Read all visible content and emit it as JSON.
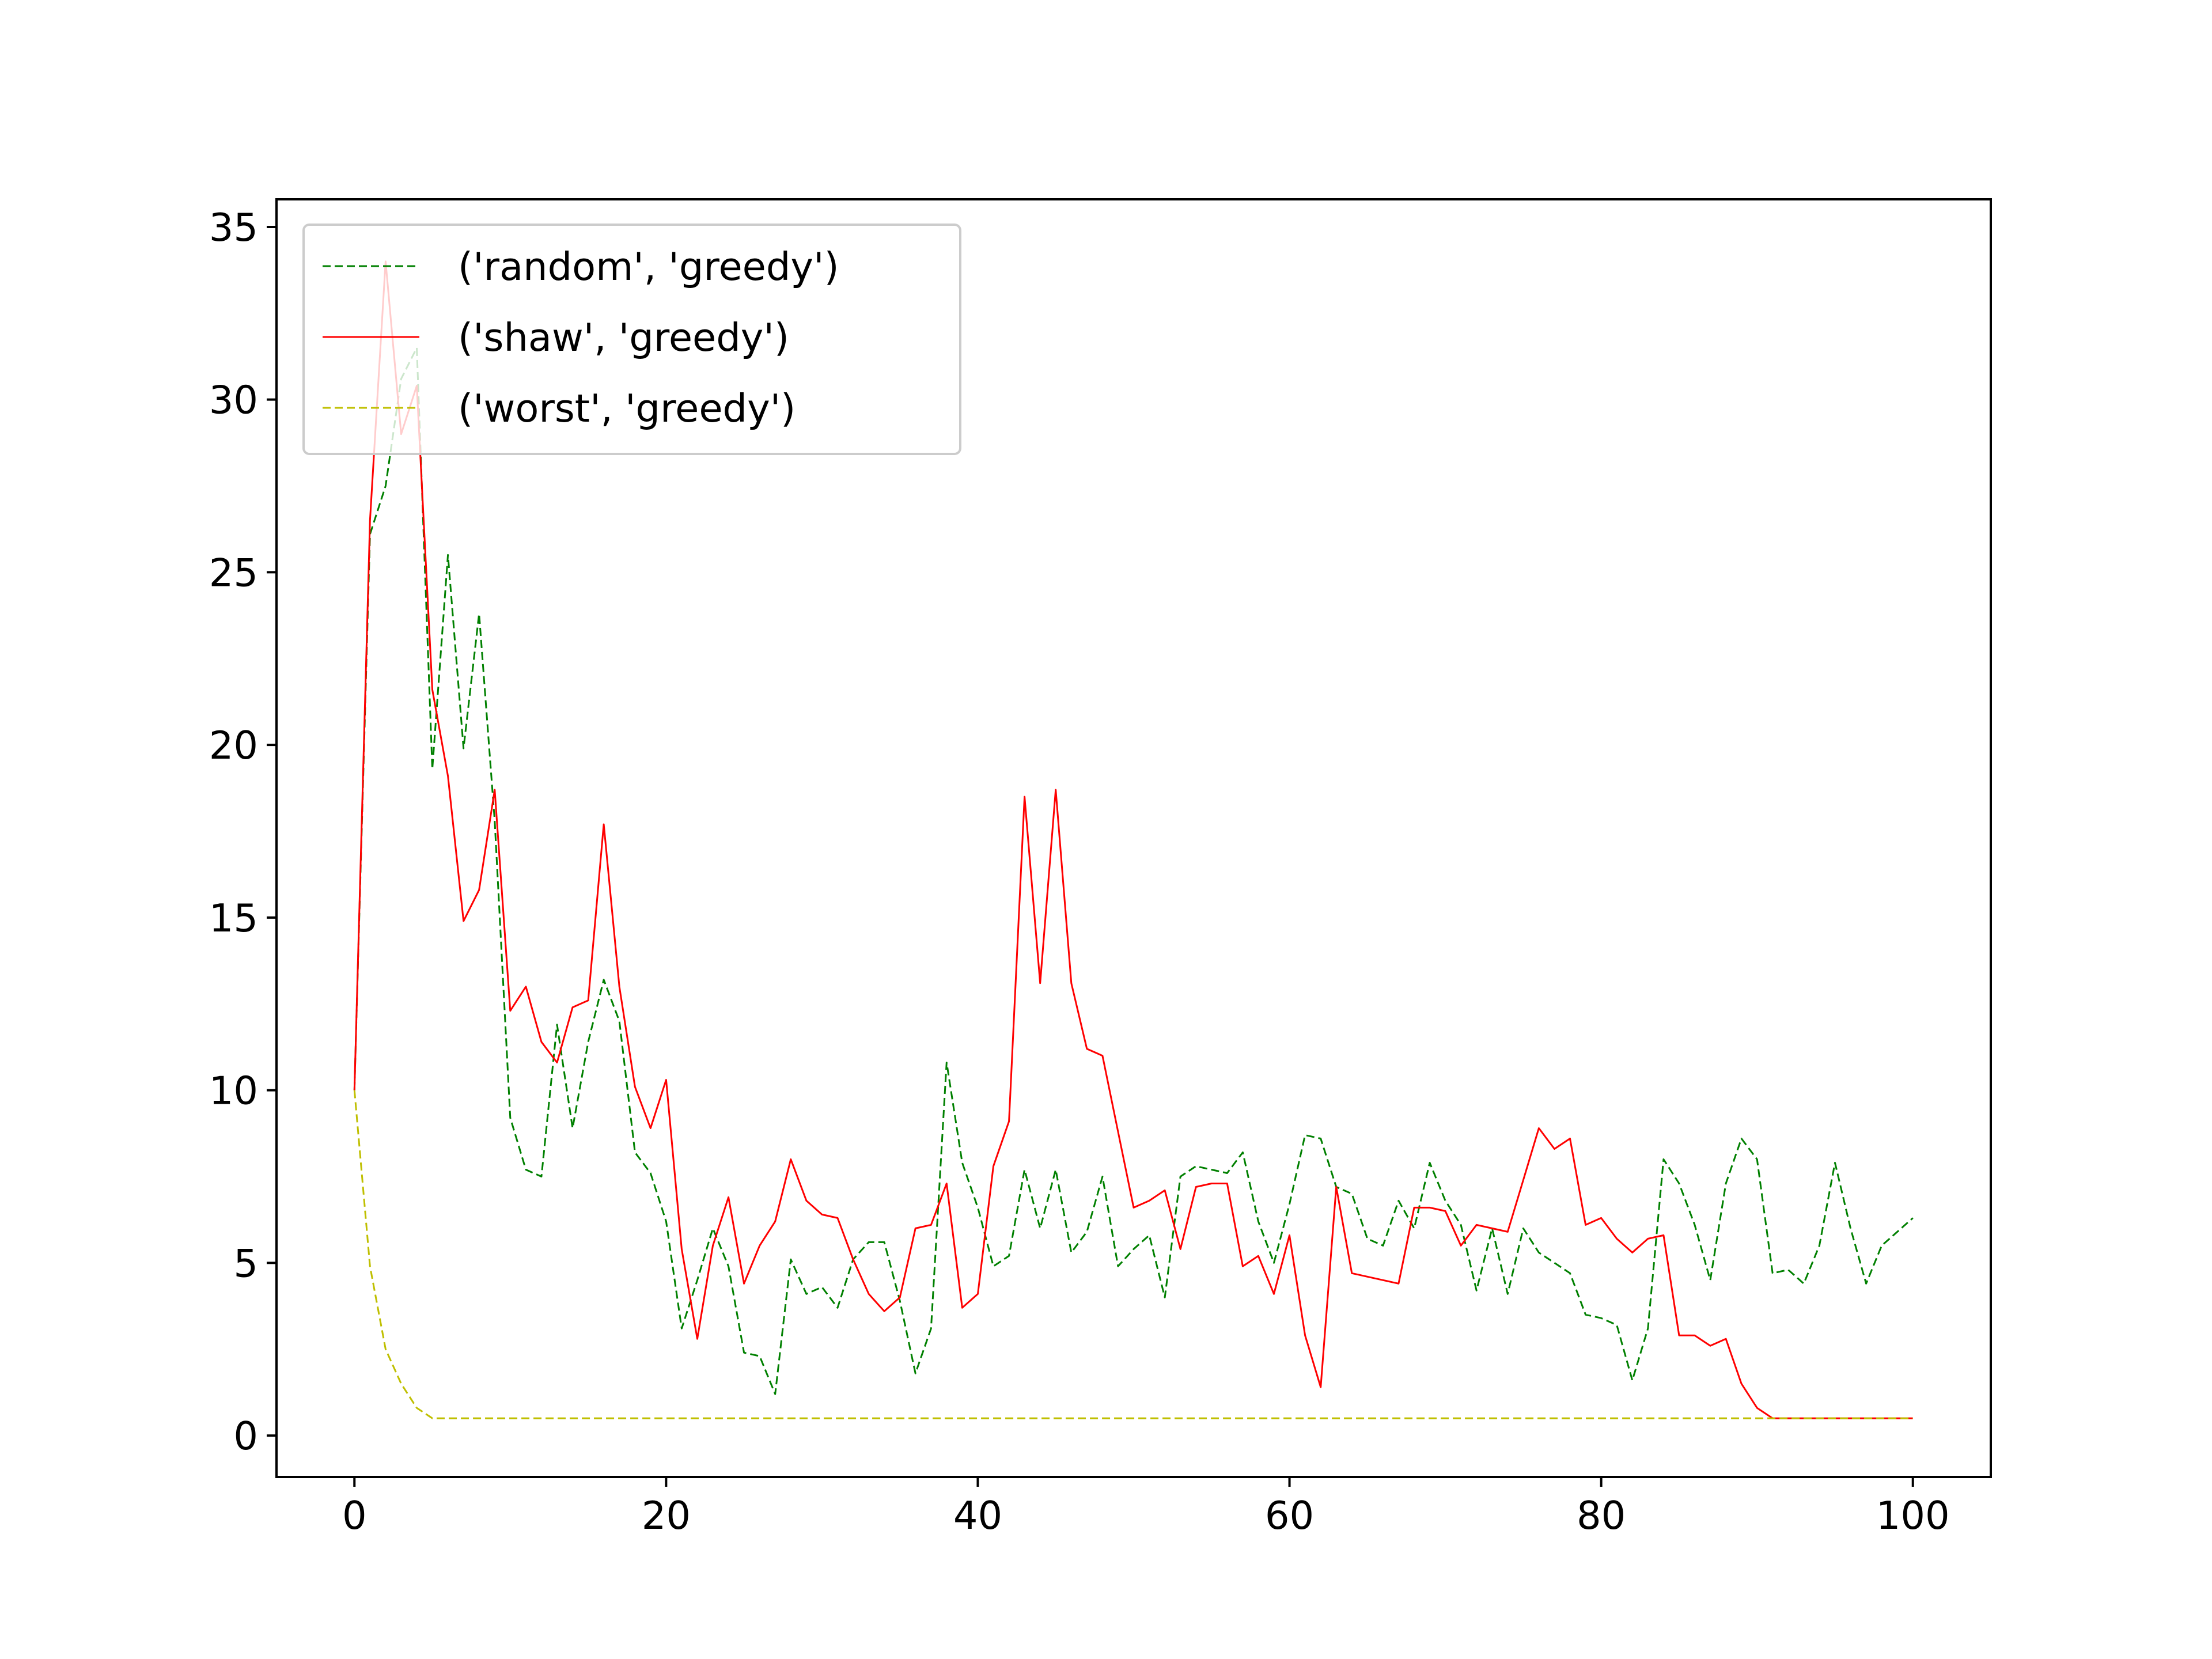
{
  "chart_data": {
    "type": "line",
    "title": "",
    "xlabel": "",
    "ylabel": "",
    "xlim": [
      -5,
      105
    ],
    "ylim": [
      -1.2,
      35.8
    ],
    "x_ticks": [
      0,
      20,
      40,
      60,
      80,
      100
    ],
    "y_ticks": [
      0,
      5,
      10,
      15,
      20,
      25,
      30,
      35
    ],
    "x_tick_labels": [
      "0",
      "20",
      "40",
      "60",
      "80",
      "100"
    ],
    "y_tick_labels": [
      "0",
      "5",
      "10",
      "15",
      "20",
      "25",
      "30",
      "35"
    ],
    "grid": false,
    "legend_position": "upper-left",
    "series": [
      {
        "name": "('random', 'greedy')",
        "color": "#008000",
        "line_style": "dashed",
        "values": [
          10.0,
          26.1,
          27.5,
          30.6,
          31.5,
          19.3,
          25.5,
          19.9,
          23.8,
          17.8,
          9.2,
          7.7,
          7.5,
          11.9,
          8.9,
          11.4,
          13.2,
          12.0,
          8.2,
          7.6,
          6.2,
          3.1,
          4.5,
          6.0,
          4.9,
          2.4,
          2.3,
          1.2,
          5.1,
          4.1,
          4.3,
          3.7,
          5.1,
          5.6,
          5.6,
          3.9,
          1.8,
          3.1,
          10.8,
          7.9,
          6.6,
          4.9,
          5.2,
          7.7,
          6.0,
          7.7,
          5.3,
          5.9,
          7.5,
          4.9,
          5.4,
          5.8,
          4.0,
          7.5,
          7.8,
          7.7,
          7.6,
          8.2,
          6.2,
          5.0,
          6.7,
          8.7,
          8.6,
          7.2,
          7.0,
          5.7,
          5.5,
          6.8,
          6.0,
          7.9,
          6.8,
          6.1,
          4.2,
          6.0,
          4.1,
          6.0,
          5.3,
          5.0,
          4.7,
          3.5,
          3.4,
          3.2,
          1.6,
          3.1,
          8.0,
          7.3,
          6.1,
          4.5,
          7.3,
          8.6,
          8.0,
          4.7,
          4.8,
          4.4,
          5.5,
          7.9,
          6.0,
          4.4,
          5.5,
          5.9,
          6.3
        ]
      },
      {
        "name": "('shaw', 'greedy')",
        "color": "#ff0000",
        "line_style": "solid",
        "values": [
          10.0,
          26.5,
          34.0,
          29.0,
          30.4,
          21.6,
          19.1,
          14.9,
          15.8,
          18.7,
          12.3,
          13.0,
          11.4,
          10.8,
          12.4,
          12.6,
          17.7,
          13.0,
          10.1,
          8.9,
          10.3,
          5.4,
          2.8,
          5.5,
          6.9,
          4.4,
          5.5,
          6.2,
          8.0,
          6.8,
          6.4,
          6.3,
          5.1,
          4.1,
          3.6,
          4.0,
          6.0,
          6.1,
          7.3,
          3.7,
          4.1,
          7.8,
          9.1,
          18.5,
          13.1,
          18.7,
          13.1,
          11.2,
          11.0,
          8.8,
          6.6,
          6.8,
          7.1,
          5.4,
          7.2,
          7.3,
          7.3,
          4.9,
          5.2,
          4.1,
          5.8,
          2.9,
          1.4,
          7.2,
          4.7,
          4.6,
          4.5,
          4.4,
          6.6,
          6.6,
          6.5,
          5.5,
          6.1,
          6.0,
          5.9,
          7.4,
          8.9,
          8.3,
          8.6,
          6.1,
          6.3,
          5.7,
          5.3,
          5.7,
          5.8,
          2.9,
          2.9,
          2.6,
          2.8,
          1.5,
          0.8,
          0.5,
          0.5,
          0.5,
          0.5,
          0.5,
          0.5,
          0.5,
          0.5,
          0.5,
          0.5
        ]
      },
      {
        "name": "('worst', 'greedy')",
        "color": "#bfbf00",
        "line_style": "dashed",
        "values": [
          10.0,
          4.9,
          2.5,
          1.5,
          0.8,
          0.5,
          0.5,
          0.5,
          0.5,
          0.5,
          0.5,
          0.5,
          0.5,
          0.5,
          0.5,
          0.5,
          0.5,
          0.5,
          0.5,
          0.5,
          0.5,
          0.5,
          0.5,
          0.5,
          0.5,
          0.5,
          0.5,
          0.5,
          0.5,
          0.5,
          0.5,
          0.5,
          0.5,
          0.5,
          0.5,
          0.5,
          0.5,
          0.5,
          0.5,
          0.5,
          0.5,
          0.5,
          0.5,
          0.5,
          0.5,
          0.5,
          0.5,
          0.5,
          0.5,
          0.5,
          0.5,
          0.5,
          0.5,
          0.5,
          0.5,
          0.5,
          0.5,
          0.5,
          0.5,
          0.5,
          0.5,
          0.5,
          0.5,
          0.5,
          0.5,
          0.5,
          0.5,
          0.5,
          0.5,
          0.5,
          0.5,
          0.5,
          0.5,
          0.5,
          0.5,
          0.5,
          0.5,
          0.5,
          0.5,
          0.5,
          0.5,
          0.5,
          0.5,
          0.5,
          0.5,
          0.5,
          0.5,
          0.5,
          0.5,
          0.5,
          0.5,
          0.5,
          0.5,
          0.5,
          0.5,
          0.5,
          0.5,
          0.5,
          0.5,
          0.5,
          0.5
        ]
      }
    ]
  }
}
